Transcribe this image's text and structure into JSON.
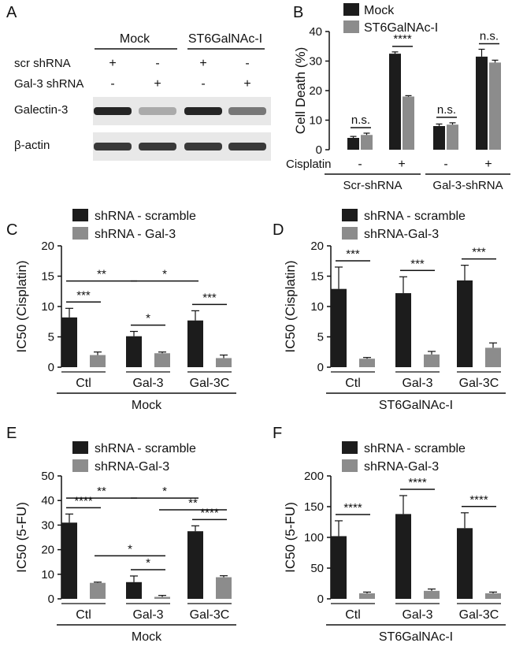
{
  "panel_labels": [
    "A",
    "B",
    "C",
    "D",
    "E",
    "F"
  ],
  "colors": {
    "scramble": "#1c1c1c",
    "gal3": "#8c8c8c",
    "blot_bg": "#e8e8e8",
    "band": "#1a1a1a"
  },
  "blot": {
    "groups": [
      "Mock",
      "ST6GalNAc-I"
    ],
    "row_labels": [
      "scr shRNA",
      "Gal-3 shRNA"
    ],
    "signs": [
      [
        "+",
        "-",
        "+",
        "-"
      ],
      [
        "-",
        "+",
        "-",
        "+"
      ]
    ],
    "bands": [
      {
        "label": "Galectin-3",
        "intensity": [
          0.95,
          0.3,
          0.95,
          0.55
        ]
      },
      {
        "label": "β-actin",
        "intensity": [
          0.85,
          0.85,
          0.85,
          0.85
        ]
      }
    ]
  },
  "chart_data": [
    {
      "panel": "B",
      "type": "bar",
      "ylabel": "Cell Death (%)",
      "ylim": [
        0,
        40
      ],
      "yticks": [
        0,
        10,
        20,
        30,
        40
      ],
      "legend": [
        "Mock",
        "ST6GalNAc-I"
      ],
      "x_row_label": "Cisplatin",
      "treatment": [
        "-",
        "+",
        "-",
        "+"
      ],
      "groups": [
        "Scr-shRNA",
        "Gal-3-shRNA"
      ],
      "series": [
        {
          "name": "Mock",
          "values": [
            4,
            32.5,
            8,
            31.5
          ],
          "errors": [
            0.5,
            0.6,
            0.7,
            2.5
          ]
        },
        {
          "name": "ST6GalNAc-I",
          "values": [
            5,
            18,
            8.5,
            29.5
          ],
          "errors": [
            0.6,
            0.3,
            0.6,
            0.8
          ]
        }
      ],
      "annotations": [
        {
          "text": "n.s.",
          "pair": 0
        },
        {
          "text": "****",
          "pair": 1
        },
        {
          "text": "n.s.",
          "pair": 2
        },
        {
          "text": "n.s.",
          "pair": 3
        }
      ]
    },
    {
      "panel": "C",
      "type": "bar",
      "ylabel": "IC50 (Cisplatin)",
      "ylim": [
        0,
        20
      ],
      "yticks": [
        0,
        5,
        10,
        15,
        20
      ],
      "legend": [
        "shRNA - scramble",
        "shRNA - Gal-3"
      ],
      "categories": [
        "Ctl",
        "Gal-3",
        "Gal-3C"
      ],
      "group_label": "Mock",
      "series": [
        {
          "name": "shRNA - scramble",
          "values": [
            8.2,
            5.1,
            7.7
          ],
          "errors": [
            1.5,
            0.8,
            1.6
          ]
        },
        {
          "name": "shRNA - Gal-3",
          "values": [
            2.0,
            2.3,
            1.5
          ],
          "errors": [
            0.5,
            0.2,
            0.5
          ]
        }
      ],
      "annotations": [
        {
          "text": "***",
          "a": [
            0,
            0
          ],
          "b": [
            0,
            1
          ]
        },
        {
          "text": "*",
          "a": [
            1,
            0
          ],
          "b": [
            1,
            1
          ]
        },
        {
          "text": "***",
          "a": [
            2,
            0
          ],
          "b": [
            2,
            1
          ]
        },
        {
          "text": "**",
          "a": [
            0,
            0
          ],
          "b": [
            1,
            0
          ]
        },
        {
          "text": "*",
          "a": [
            1,
            0
          ],
          "b": [
            2,
            0
          ]
        }
      ]
    },
    {
      "panel": "D",
      "type": "bar",
      "ylabel": "IC50 (Cisplatin)",
      "ylim": [
        0,
        20
      ],
      "yticks": [
        0,
        5,
        10,
        15,
        20
      ],
      "legend": [
        "shRNA - scramble",
        "shRNA-Gal-3"
      ],
      "categories": [
        "Ctl",
        "Gal-3",
        "Gal-3C"
      ],
      "group_label": "ST6GalNAc-I",
      "series": [
        {
          "name": "shRNA - scramble",
          "values": [
            12.9,
            12.2,
            14.3
          ],
          "errors": [
            3.6,
            2.7,
            2.5
          ]
        },
        {
          "name": "shRNA-Gal-3",
          "values": [
            1.4,
            2.1,
            3.2
          ],
          "errors": [
            0.2,
            0.5,
            0.8
          ]
        }
      ],
      "annotations": [
        {
          "text": "***",
          "a": [
            0,
            0
          ],
          "b": [
            0,
            1
          ]
        },
        {
          "text": "***",
          "a": [
            1,
            0
          ],
          "b": [
            1,
            1
          ]
        },
        {
          "text": "***",
          "a": [
            2,
            0
          ],
          "b": [
            2,
            1
          ]
        }
      ]
    },
    {
      "panel": "E",
      "type": "bar",
      "ylabel": "IC50 (5-FU)",
      "ylim": [
        0,
        50
      ],
      "yticks": [
        0,
        10,
        20,
        30,
        40,
        50
      ],
      "legend": [
        "shRNA - scramble",
        "shRNA-Gal-3"
      ],
      "categories": [
        "Ctl",
        "Gal-3",
        "Gal-3C"
      ],
      "group_label": "Mock",
      "series": [
        {
          "name": "shRNA - scramble",
          "values": [
            31,
            6.8,
            27.5
          ],
          "errors": [
            3.5,
            2.5,
            2.2
          ]
        },
        {
          "name": "shRNA-Gal-3",
          "values": [
            6.5,
            0.8,
            8.8
          ],
          "errors": [
            0.3,
            0.6,
            0.6
          ]
        }
      ],
      "annotations": [
        {
          "text": "****",
          "a": [
            0,
            0
          ],
          "b": [
            0,
            1
          ]
        },
        {
          "text": "*",
          "a": [
            1,
            0
          ],
          "b": [
            1,
            1
          ]
        },
        {
          "text": "****",
          "a": [
            2,
            0
          ],
          "b": [
            2,
            1
          ]
        },
        {
          "text": "**",
          "a": [
            0,
            0
          ],
          "b": [
            1,
            0
          ]
        },
        {
          "text": "*",
          "a": [
            1,
            0
          ],
          "b": [
            2,
            0
          ]
        },
        {
          "text": "*",
          "a": [
            0,
            1
          ],
          "b": [
            1,
            1
          ]
        },
        {
          "text": "**",
          "a": [
            1,
            1
          ],
          "b": [
            2,
            1
          ]
        }
      ]
    },
    {
      "panel": "F",
      "type": "bar",
      "ylabel": "IC50 (5-FU)",
      "ylim": [
        0,
        200
      ],
      "yticks": [
        0,
        50,
        100,
        150,
        200
      ],
      "legend": [
        "shRNA - scramble",
        "shRNA-Gal-3"
      ],
      "categories": [
        "Ctl",
        "Gal-3",
        "Gal-3C"
      ],
      "group_label": "ST6GalNAc-I",
      "series": [
        {
          "name": "shRNA - scramble",
          "values": [
            102,
            138,
            115
          ],
          "errors": [
            25,
            30,
            25
          ]
        },
        {
          "name": "shRNA-Gal-3",
          "values": [
            9,
            13,
            9
          ],
          "errors": [
            2,
            3,
            2
          ]
        }
      ],
      "annotations": [
        {
          "text": "****",
          "a": [
            0,
            0
          ],
          "b": [
            0,
            1
          ]
        },
        {
          "text": "****",
          "a": [
            1,
            0
          ],
          "b": [
            1,
            1
          ]
        },
        {
          "text": "****",
          "a": [
            2,
            0
          ],
          "b": [
            2,
            1
          ]
        }
      ]
    }
  ]
}
